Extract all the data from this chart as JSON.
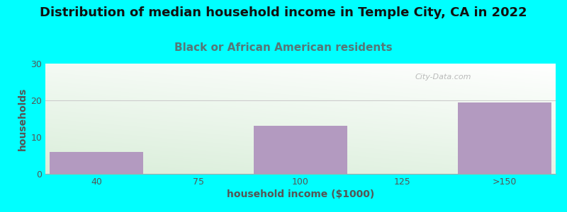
{
  "title": "Distribution of median household income in Temple City, CA in 2022",
  "subtitle": "Black or African American residents",
  "xlabel": "household income ($1000)",
  "ylabel": "households",
  "categories": [
    "40",
    "75",
    "100",
    "125",
    ">150"
  ],
  "values": [
    6,
    0,
    13,
    0,
    19.5
  ],
  "bar_color": "#b39ac0",
  "bar_width": 0.92,
  "ylim": [
    0,
    30
  ],
  "yticks": [
    0,
    10,
    20,
    30
  ],
  "background_color": "#00FFFF",
  "plot_bg_top": "#ffffff",
  "plot_bg_bottom": "#daeeda",
  "grid_color": "#cccccc",
  "title_fontsize": 13,
  "subtitle_fontsize": 11,
  "axis_label_fontsize": 10,
  "tick_fontsize": 9,
  "title_color": "#111111",
  "subtitle_color": "#557777",
  "tick_color": "#555555",
  "watermark": "City-Data.com"
}
